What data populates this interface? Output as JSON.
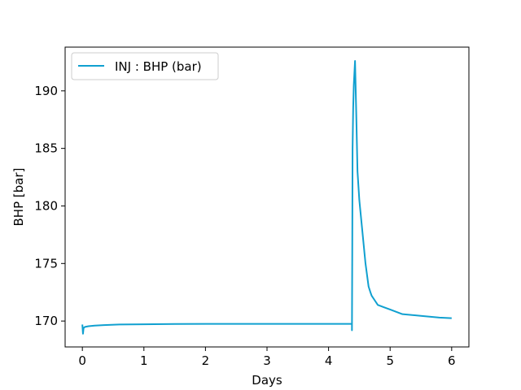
{
  "chart_data": {
    "type": "line",
    "title": "",
    "xlabel": "Days",
    "ylabel": "BHP [bar]",
    "xlim": [
      -0.28,
      6.28
    ],
    "ylim": [
      167.75,
      193.8
    ],
    "xticks": [
      0,
      1,
      2,
      3,
      4,
      5,
      6
    ],
    "yticks": [
      170,
      175,
      180,
      185,
      190
    ],
    "grid": false,
    "legend": {
      "position": "top-left"
    },
    "series": [
      {
        "name": "INJ : BHP (bar)",
        "color": "#10a0d0",
        "x": [
          0,
          0.01,
          0.02,
          0.03,
          0.05,
          0.1,
          0.2,
          0.35,
          0.6,
          1.0,
          1.5,
          2.0,
          2.5,
          3.0,
          3.5,
          4.0,
          4.38,
          4.38,
          4.385,
          4.39,
          4.4,
          4.41,
          4.43,
          4.45,
          4.47,
          4.5,
          4.6,
          4.65,
          4.68,
          4.7,
          4.75,
          4.8,
          4.9,
          5.0,
          5.2,
          5.5,
          5.8,
          6.0
        ],
        "y": [
          169.7,
          168.9,
          169.4,
          169.45,
          169.5,
          169.55,
          169.6,
          169.65,
          169.7,
          169.72,
          169.74,
          169.75,
          169.75,
          169.75,
          169.75,
          169.75,
          169.75,
          169.2,
          176.0,
          185.0,
          188.5,
          190.5,
          192.6,
          188.0,
          183.0,
          180.5,
          175.0,
          173.0,
          172.5,
          172.2,
          171.8,
          171.4,
          171.2,
          171.0,
          170.6,
          170.45,
          170.3,
          170.25
        ]
      }
    ]
  }
}
